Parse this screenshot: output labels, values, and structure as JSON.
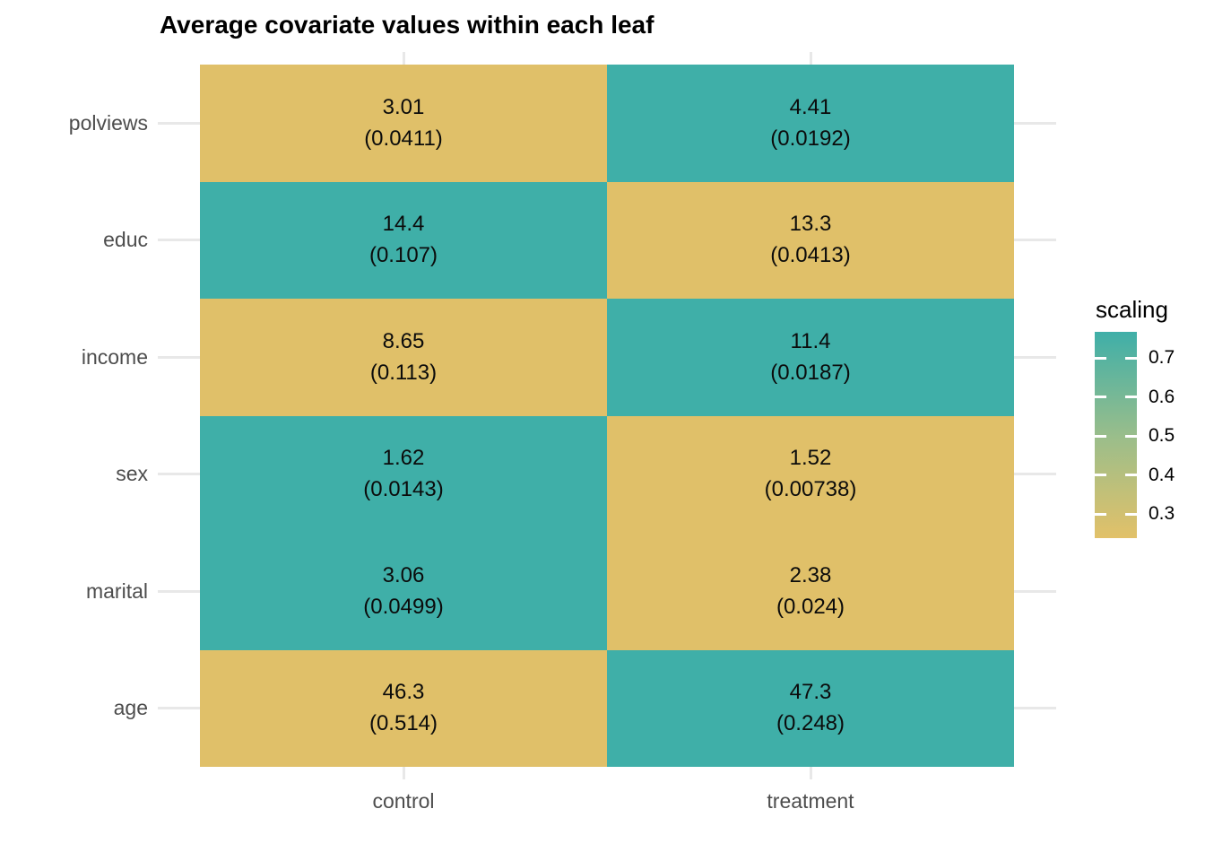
{
  "title": "Average covariate values within each leaf",
  "colors": {
    "teal": "#3FAFA8",
    "gold": "#E0C069",
    "axis_text": "#4D4D4D",
    "grid": "#E8E8E8",
    "cell_text": "#0B0B0B",
    "background": "#FFFFFF",
    "legend_mid": "#9CBE8A"
  },
  "chart_data": {
    "type": "heatmap",
    "title": "Average covariate values within each leaf",
    "x_categories": [
      "control",
      "treatment"
    ],
    "y_categories_top_to_bottom": [
      "polviews",
      "educ",
      "income",
      "sex",
      "marital",
      "age"
    ],
    "cells": [
      {
        "row": "polviews",
        "col": "control",
        "value": "3.01",
        "se": "(0.0411)",
        "fill": "gold"
      },
      {
        "row": "polviews",
        "col": "treatment",
        "value": "4.41",
        "se": "(0.0192)",
        "fill": "teal"
      },
      {
        "row": "educ",
        "col": "control",
        "value": "14.4",
        "se": "(0.107)",
        "fill": "teal"
      },
      {
        "row": "educ",
        "col": "treatment",
        "value": "13.3",
        "se": "(0.0413)",
        "fill": "gold"
      },
      {
        "row": "income",
        "col": "control",
        "value": "8.65",
        "se": "(0.113)",
        "fill": "gold"
      },
      {
        "row": "income",
        "col": "treatment",
        "value": "11.4",
        "se": "(0.0187)",
        "fill": "teal"
      },
      {
        "row": "sex",
        "col": "control",
        "value": "1.62",
        "se": "(0.0143)",
        "fill": "teal"
      },
      {
        "row": "sex",
        "col": "treatment",
        "value": "1.52",
        "se": "(0.00738)",
        "fill": "gold"
      },
      {
        "row": "marital",
        "col": "control",
        "value": "3.06",
        "se": "(0.0499)",
        "fill": "teal"
      },
      {
        "row": "marital",
        "col": "treatment",
        "value": "2.38",
        "se": "(0.024)",
        "fill": "gold"
      },
      {
        "row": "age",
        "col": "control",
        "value": "46.3",
        "se": "(0.514)",
        "fill": "gold"
      },
      {
        "row": "age",
        "col": "treatment",
        "value": "47.3",
        "se": "(0.248)",
        "fill": "teal"
      }
    ],
    "legend": {
      "title": "scaling",
      "tick_labels": [
        "0.7",
        "0.6",
        "0.5",
        "0.4",
        "0.3"
      ],
      "gradient_top_color": "#3FAFA8",
      "gradient_bottom_color": "#E2C169",
      "position": "right"
    },
    "grid": "on",
    "legend_position": "right"
  }
}
